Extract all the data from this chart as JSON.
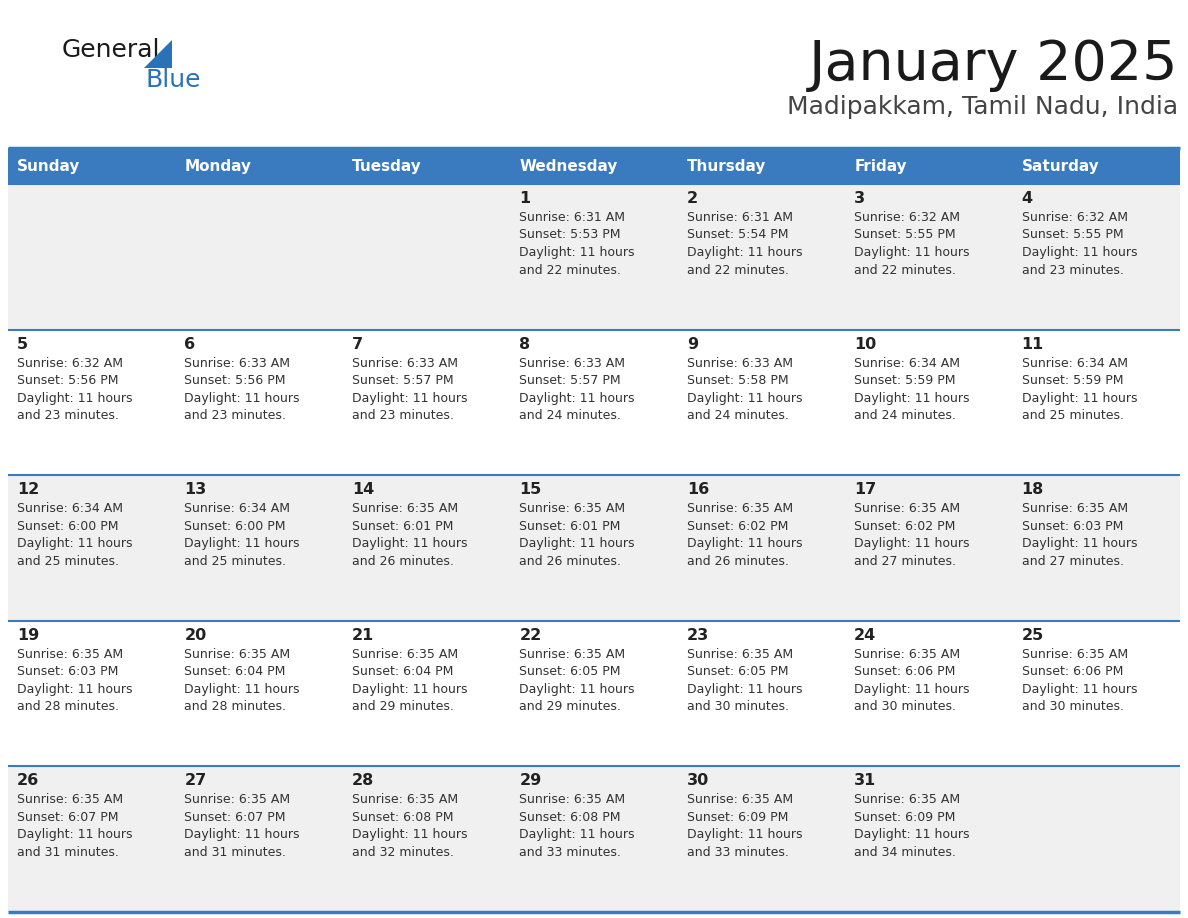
{
  "title": "January 2025",
  "subtitle": "Madipakkam, Tamil Nadu, India",
  "header_color": "#3a7abf",
  "header_text_color": "#ffffff",
  "cell_bg_even": "#f0f0f0",
  "cell_bg_odd": "#ffffff",
  "grid_line_color": "#3a7abf",
  "text_color": "#333333",
  "day_num_color": "#222222",
  "logo_general_color": "#1a1a1a",
  "logo_blue_color": "#2a72b8",
  "logo_triangle_color": "#2a72b8",
  "title_color": "#1a1a1a",
  "subtitle_color": "#444444",
  "days_of_week": [
    "Sunday",
    "Monday",
    "Tuesday",
    "Wednesday",
    "Thursday",
    "Friday",
    "Saturday"
  ],
  "calendar_data": [
    [
      {
        "day": "",
        "sunrise": "",
        "sunset": "",
        "daylight_h": "",
        "daylight_m": ""
      },
      {
        "day": "",
        "sunrise": "",
        "sunset": "",
        "daylight_h": "",
        "daylight_m": ""
      },
      {
        "day": "",
        "sunrise": "",
        "sunset": "",
        "daylight_h": "",
        "daylight_m": ""
      },
      {
        "day": "1",
        "sunrise": "6:31 AM",
        "sunset": "5:53 PM",
        "daylight_h": "11",
        "daylight_m": "22"
      },
      {
        "day": "2",
        "sunrise": "6:31 AM",
        "sunset": "5:54 PM",
        "daylight_h": "11",
        "daylight_m": "22"
      },
      {
        "day": "3",
        "sunrise": "6:32 AM",
        "sunset": "5:55 PM",
        "daylight_h": "11",
        "daylight_m": "22"
      },
      {
        "day": "4",
        "sunrise": "6:32 AM",
        "sunset": "5:55 PM",
        "daylight_h": "11",
        "daylight_m": "23"
      }
    ],
    [
      {
        "day": "5",
        "sunrise": "6:32 AM",
        "sunset": "5:56 PM",
        "daylight_h": "11",
        "daylight_m": "23"
      },
      {
        "day": "6",
        "sunrise": "6:33 AM",
        "sunset": "5:56 PM",
        "daylight_h": "11",
        "daylight_m": "23"
      },
      {
        "day": "7",
        "sunrise": "6:33 AM",
        "sunset": "5:57 PM",
        "daylight_h": "11",
        "daylight_m": "23"
      },
      {
        "day": "8",
        "sunrise": "6:33 AM",
        "sunset": "5:57 PM",
        "daylight_h": "11",
        "daylight_m": "24"
      },
      {
        "day": "9",
        "sunrise": "6:33 AM",
        "sunset": "5:58 PM",
        "daylight_h": "11",
        "daylight_m": "24"
      },
      {
        "day": "10",
        "sunrise": "6:34 AM",
        "sunset": "5:59 PM",
        "daylight_h": "11",
        "daylight_m": "24"
      },
      {
        "day": "11",
        "sunrise": "6:34 AM",
        "sunset": "5:59 PM",
        "daylight_h": "11",
        "daylight_m": "25"
      }
    ],
    [
      {
        "day": "12",
        "sunrise": "6:34 AM",
        "sunset": "6:00 PM",
        "daylight_h": "11",
        "daylight_m": "25"
      },
      {
        "day": "13",
        "sunrise": "6:34 AM",
        "sunset": "6:00 PM",
        "daylight_h": "11",
        "daylight_m": "25"
      },
      {
        "day": "14",
        "sunrise": "6:35 AM",
        "sunset": "6:01 PM",
        "daylight_h": "11",
        "daylight_m": "26"
      },
      {
        "day": "15",
        "sunrise": "6:35 AM",
        "sunset": "6:01 PM",
        "daylight_h": "11",
        "daylight_m": "26"
      },
      {
        "day": "16",
        "sunrise": "6:35 AM",
        "sunset": "6:02 PM",
        "daylight_h": "11",
        "daylight_m": "26"
      },
      {
        "day": "17",
        "sunrise": "6:35 AM",
        "sunset": "6:02 PM",
        "daylight_h": "11",
        "daylight_m": "27"
      },
      {
        "day": "18",
        "sunrise": "6:35 AM",
        "sunset": "6:03 PM",
        "daylight_h": "11",
        "daylight_m": "27"
      }
    ],
    [
      {
        "day": "19",
        "sunrise": "6:35 AM",
        "sunset": "6:03 PM",
        "daylight_h": "11",
        "daylight_m": "28"
      },
      {
        "day": "20",
        "sunrise": "6:35 AM",
        "sunset": "6:04 PM",
        "daylight_h": "11",
        "daylight_m": "28"
      },
      {
        "day": "21",
        "sunrise": "6:35 AM",
        "sunset": "6:04 PM",
        "daylight_h": "11",
        "daylight_m": "29"
      },
      {
        "day": "22",
        "sunrise": "6:35 AM",
        "sunset": "6:05 PM",
        "daylight_h": "11",
        "daylight_m": "29"
      },
      {
        "day": "23",
        "sunrise": "6:35 AM",
        "sunset": "6:05 PM",
        "daylight_h": "11",
        "daylight_m": "30"
      },
      {
        "day": "24",
        "sunrise": "6:35 AM",
        "sunset": "6:06 PM",
        "daylight_h": "11",
        "daylight_m": "30"
      },
      {
        "day": "25",
        "sunrise": "6:35 AM",
        "sunset": "6:06 PM",
        "daylight_h": "11",
        "daylight_m": "30"
      }
    ],
    [
      {
        "day": "26",
        "sunrise": "6:35 AM",
        "sunset": "6:07 PM",
        "daylight_h": "11",
        "daylight_m": "31"
      },
      {
        "day": "27",
        "sunrise": "6:35 AM",
        "sunset": "6:07 PM",
        "daylight_h": "11",
        "daylight_m": "31"
      },
      {
        "day": "28",
        "sunrise": "6:35 AM",
        "sunset": "6:08 PM",
        "daylight_h": "11",
        "daylight_m": "32"
      },
      {
        "day": "29",
        "sunrise": "6:35 AM",
        "sunset": "6:08 PM",
        "daylight_h": "11",
        "daylight_m": "33"
      },
      {
        "day": "30",
        "sunrise": "6:35 AM",
        "sunset": "6:09 PM",
        "daylight_h": "11",
        "daylight_m": "33"
      },
      {
        "day": "31",
        "sunrise": "6:35 AM",
        "sunset": "6:09 PM",
        "daylight_h": "11",
        "daylight_m": "34"
      },
      {
        "day": "",
        "sunrise": "",
        "sunset": "",
        "daylight_h": "",
        "daylight_m": ""
      }
    ]
  ],
  "figsize": [
    11.88,
    9.18
  ],
  "dpi": 100
}
